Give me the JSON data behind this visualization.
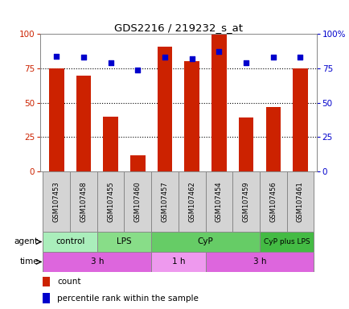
{
  "title": "GDS2216 / 219232_s_at",
  "samples": [
    "GSM107453",
    "GSM107458",
    "GSM107455",
    "GSM107460",
    "GSM107457",
    "GSM107462",
    "GSM107454",
    "GSM107459",
    "GSM107456",
    "GSM107461"
  ],
  "count_values": [
    75,
    70,
    40,
    12,
    91,
    80,
    100,
    39,
    47,
    75
  ],
  "percentile_values": [
    84,
    83,
    79,
    74,
    83,
    82,
    87,
    79,
    83,
    83
  ],
  "bar_color": "#cc2200",
  "dot_color": "#0000cc",
  "agent_groups": [
    {
      "label": "control",
      "start": 0,
      "end": 2,
      "color": "#aaeebb"
    },
    {
      "label": "LPS",
      "start": 2,
      "end": 4,
      "color": "#88dd88"
    },
    {
      "label": "CyP",
      "start": 4,
      "end": 8,
      "color": "#66cc66"
    },
    {
      "label": "CyP plus LPS",
      "start": 8,
      "end": 10,
      "color": "#44bb44"
    }
  ],
  "time_groups": [
    {
      "label": "3 h",
      "start": 0,
      "end": 4,
      "color": "#dd66dd"
    },
    {
      "label": "1 h",
      "start": 4,
      "end": 6,
      "color": "#ee99ee"
    },
    {
      "label": "3 h",
      "start": 6,
      "end": 10,
      "color": "#dd66dd"
    }
  ],
  "ylim_left": [
    0,
    100
  ],
  "ylim_right": [
    0,
    100
  ],
  "yticks_left": [
    0,
    25,
    50,
    75,
    100
  ],
  "yticks_right": [
    0,
    25,
    50,
    75,
    100
  ],
  "plot_bg_color": "#ffffff",
  "grid_color": "#000000",
  "left_axis_color": "#cc2200",
  "right_axis_color": "#0000cc",
  "legend_count_label": "count",
  "legend_pct_label": "percentile rank within the sample",
  "agent_label": "agent",
  "time_label": "time"
}
